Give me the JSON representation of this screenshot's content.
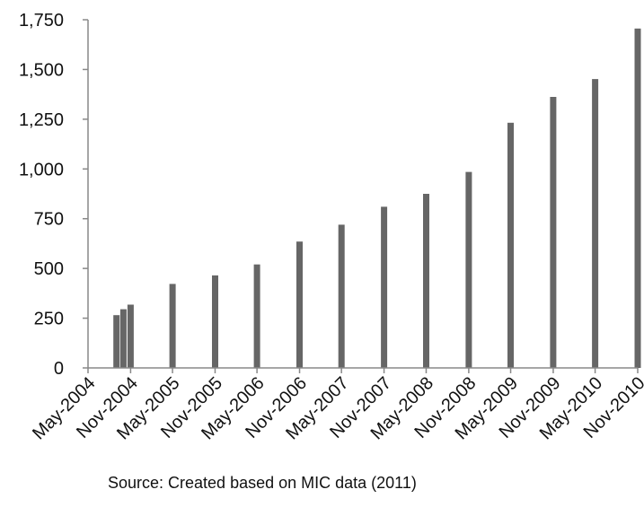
{
  "chart_data": {
    "type": "bar",
    "title": "",
    "xlabel": "",
    "ylabel": "",
    "ylim": [
      0,
      1750
    ],
    "yticks": [
      0,
      250,
      500,
      750,
      1000,
      1250,
      1500,
      1750
    ],
    "ytick_labels": [
      "0",
      "250",
      "500",
      "750",
      "1,000",
      "1,250",
      "1,500",
      "1,750"
    ],
    "x_axis_type": "date",
    "x_range": [
      "2004-05-01",
      "2010-11-01"
    ],
    "xtick_labels": [
      "May-2004",
      "Nov-2004",
      "May-2005",
      "Nov-2005",
      "May-2006",
      "Nov-2006",
      "May-2007",
      "Nov-2007",
      "May-2008",
      "Nov-2008",
      "May-2009",
      "Nov-2009",
      "May-2010",
      "Nov-2010"
    ],
    "xtick_dates": [
      "2004-05-01",
      "2004-11-01",
      "2005-05-01",
      "2005-11-01",
      "2006-05-01",
      "2006-11-01",
      "2007-05-01",
      "2007-11-01",
      "2008-05-01",
      "2008-11-01",
      "2009-05-01",
      "2009-11-01",
      "2010-05-01",
      "2010-11-01"
    ],
    "bar_color": "#666666",
    "grid": false,
    "legend": "none",
    "points": [
      {
        "x": "2004-09-01",
        "y": 265
      },
      {
        "x": "2004-10-01",
        "y": 295
      },
      {
        "x": "2004-11-01",
        "y": 318
      },
      {
        "x": "2005-05-01",
        "y": 422
      },
      {
        "x": "2005-11-01",
        "y": 465
      },
      {
        "x": "2006-05-01",
        "y": 520
      },
      {
        "x": "2006-11-01",
        "y": 635
      },
      {
        "x": "2007-05-01",
        "y": 720
      },
      {
        "x": "2007-11-01",
        "y": 810
      },
      {
        "x": "2008-05-01",
        "y": 875
      },
      {
        "x": "2008-11-01",
        "y": 985
      },
      {
        "x": "2009-05-01",
        "y": 1232
      },
      {
        "x": "2009-11-01",
        "y": 1362
      },
      {
        "x": "2010-05-01",
        "y": 1452
      },
      {
        "x": "2010-11-01",
        "y": 1706
      }
    ]
  },
  "source_note": "Source: Created based on MIC data (2011)"
}
